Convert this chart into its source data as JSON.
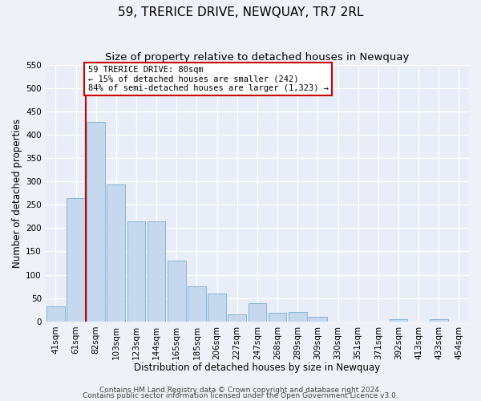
{
  "title": "59, TRERICE DRIVE, NEWQUAY, TR7 2RL",
  "subtitle": "Size of property relative to detached houses in Newquay",
  "xlabel": "Distribution of detached houses by size in Newquay",
  "ylabel": "Number of detached properties",
  "bar_labels": [
    "41sqm",
    "61sqm",
    "82sqm",
    "103sqm",
    "123sqm",
    "144sqm",
    "165sqm",
    "185sqm",
    "206sqm",
    "227sqm",
    "247sqm",
    "268sqm",
    "289sqm",
    "309sqm",
    "330sqm",
    "351sqm",
    "371sqm",
    "392sqm",
    "413sqm",
    "433sqm",
    "454sqm"
  ],
  "bar_values": [
    32,
    265,
    428,
    293,
    215,
    215,
    130,
    76,
    59,
    15,
    40,
    18,
    20,
    10,
    0,
    0,
    0,
    5,
    0,
    5,
    0
  ],
  "bar_color": "#c5d8ed",
  "bar_edge_color": "#7aadd4",
  "vline_color": "#cc0000",
  "annotation_title": "59 TRERICE DRIVE: 80sqm",
  "annotation_line1": "← 15% of detached houses are smaller (242)",
  "annotation_line2": "84% of semi-detached houses are larger (1,323) →",
  "annotation_box_color": "#ffffff",
  "annotation_box_edge": "#cc0000",
  "ylim": [
    0,
    550
  ],
  "yticks": [
    0,
    50,
    100,
    150,
    200,
    250,
    300,
    350,
    400,
    450,
    500,
    550
  ],
  "footer1": "Contains HM Land Registry data © Crown copyright and database right 2024.",
  "footer2": "Contains public sector information licensed under the Open Government Licence v3.0.",
  "bg_color": "#eef1f8",
  "plot_bg_color": "#e8edf7",
  "grid_color": "#ffffff",
  "title_fontsize": 11,
  "subtitle_fontsize": 9.5,
  "axis_label_fontsize": 8.5,
  "tick_fontsize": 7.5,
  "footer_fontsize": 6.5
}
